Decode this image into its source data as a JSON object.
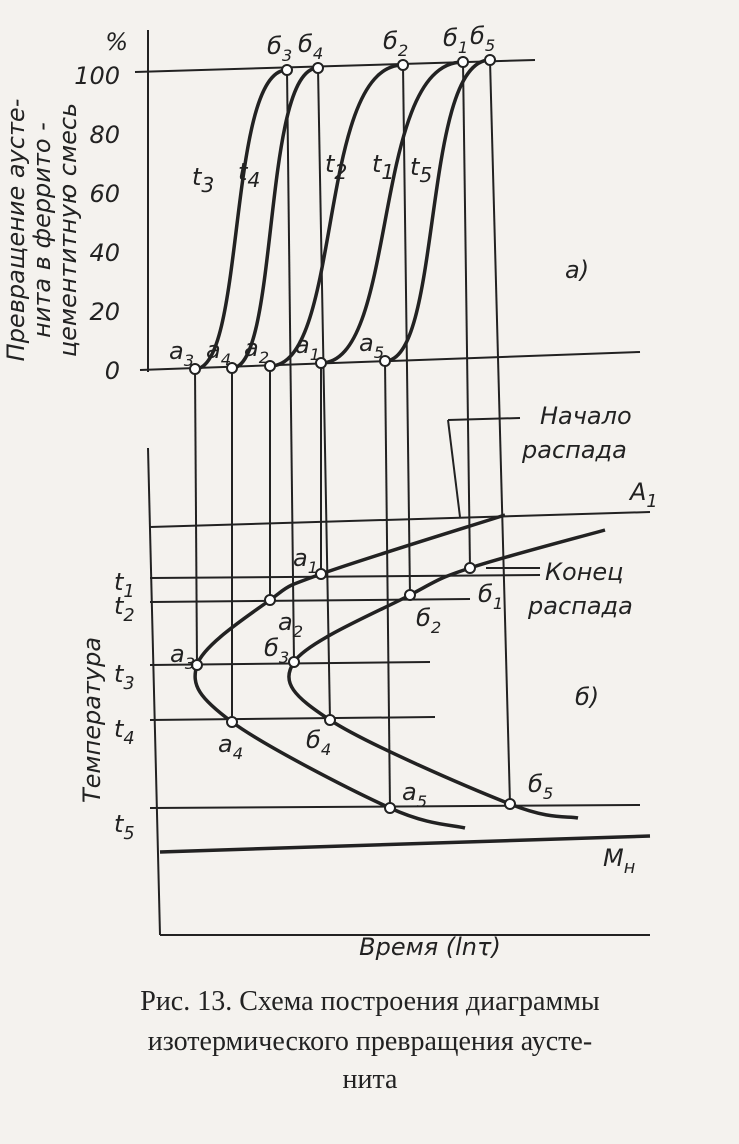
{
  "panel_a": {
    "label": "а)",
    "y_axis_title": [
      "Превращение аусте-",
      "нита в феррито -",
      "цементитную смесь"
    ],
    "y_unit": "%",
    "y_ticks": [
      0,
      20,
      40,
      60,
      80,
      100
    ],
    "curves": [
      {
        "name": {
          "t": "t",
          "sub": "3"
        },
        "start": {
          "t": "а",
          "sub": "3"
        },
        "end": {
          "t": "б",
          "sub": "3"
        }
      },
      {
        "name": {
          "t": "t",
          "sub": "4"
        },
        "start": {
          "t": "а",
          "sub": "4"
        },
        "end": {
          "t": "б",
          "sub": "4"
        }
      },
      {
        "name": {
          "t": "t",
          "sub": "2"
        },
        "start": {
          "t": "а",
          "sub": "2"
        },
        "end": {
          "t": "б",
          "sub": "2"
        }
      },
      {
        "name": {
          "t": "t",
          "sub": "1"
        },
        "start": {
          "t": "а",
          "sub": "1"
        },
        "end": {
          "t": "б",
          "sub": "1"
        }
      },
      {
        "name": {
          "t": "t",
          "sub": "5"
        },
        "start": {
          "t": "а",
          "sub": "5"
        },
        "end": {
          "t": "б",
          "sub": "5"
        }
      }
    ]
  },
  "panel_b": {
    "label": "б)",
    "y_axis_title": "Температура",
    "x_axis_title": "Время (lnτ)",
    "a1_line": {
      "t": "A",
      "sub": "1"
    },
    "mn_line": {
      "t": "M",
      "sub": "н"
    },
    "start_curve_label": [
      "Начало",
      "распада"
    ],
    "end_curve_label": [
      "Конец",
      "распада"
    ],
    "temperatures": [
      {
        "t": "t",
        "sub": "1"
      },
      {
        "t": "t",
        "sub": "2"
      },
      {
        "t": "t",
        "sub": "3"
      },
      {
        "t": "t",
        "sub": "4"
      },
      {
        "t": "t",
        "sub": "5"
      }
    ],
    "start_points": [
      {
        "t": "а",
        "sub": "1"
      },
      {
        "t": "а",
        "sub": "2"
      },
      {
        "t": "а",
        "sub": "3"
      },
      {
        "t": "а",
        "sub": "4"
      },
      {
        "t": "а",
        "sub": "5"
      }
    ],
    "end_points": [
      {
        "t": "б",
        "sub": "1"
      },
      {
        "t": "б",
        "sub": "2"
      },
      {
        "t": "б",
        "sub": "3"
      },
      {
        "t": "б",
        "sub": "4"
      },
      {
        "t": "б",
        "sub": "5"
      }
    ]
  },
  "caption": [
    "Рис. 13. Схема построения диаграммы",
    "изотермического превращения аусте-",
    "нита"
  ]
}
